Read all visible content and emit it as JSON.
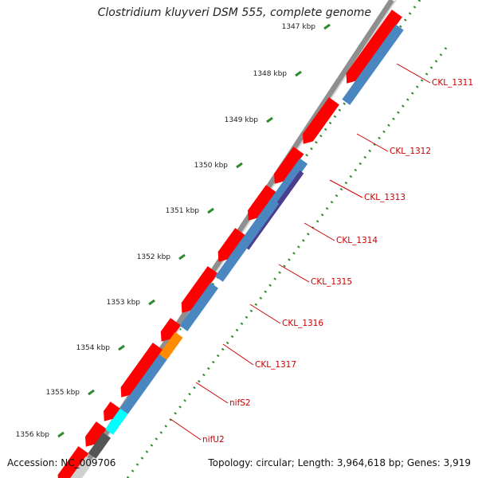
{
  "title": "Clostridium kluyveri DSM 555, complete genome",
  "footer": {
    "accession": "Accession: NC_009706",
    "summary": "Topology: circular; Length: 3,964,618 bp; Genes: 3,919"
  },
  "ruler": {
    "ticks": [
      "1347 kbp",
      "1348 kbp",
      "1349 kbp",
      "1350 kbp",
      "1351 kbp",
      "1352 kbp",
      "1353 kbp",
      "1354 kbp",
      "1355 kbp",
      "1356 kbp"
    ]
  },
  "gene_labels": [
    "CKL_1311",
    "CKL_1312",
    "CKL_1313",
    "CKL_1314",
    "CKL_1315",
    "CKL_1316",
    "CKL_1317",
    "nifS2",
    "nifU2"
  ],
  "colors": {
    "gene_red": "#ff0000",
    "cds_blue": "#4a86c0",
    "cds_purple": "#4b3d8f",
    "cds_orange": "#ff8c00",
    "cds_cyan": "#00ffff",
    "cds_gray": "#555555",
    "label_red": "#cc0000",
    "tick_green": "#2e8b2e"
  }
}
